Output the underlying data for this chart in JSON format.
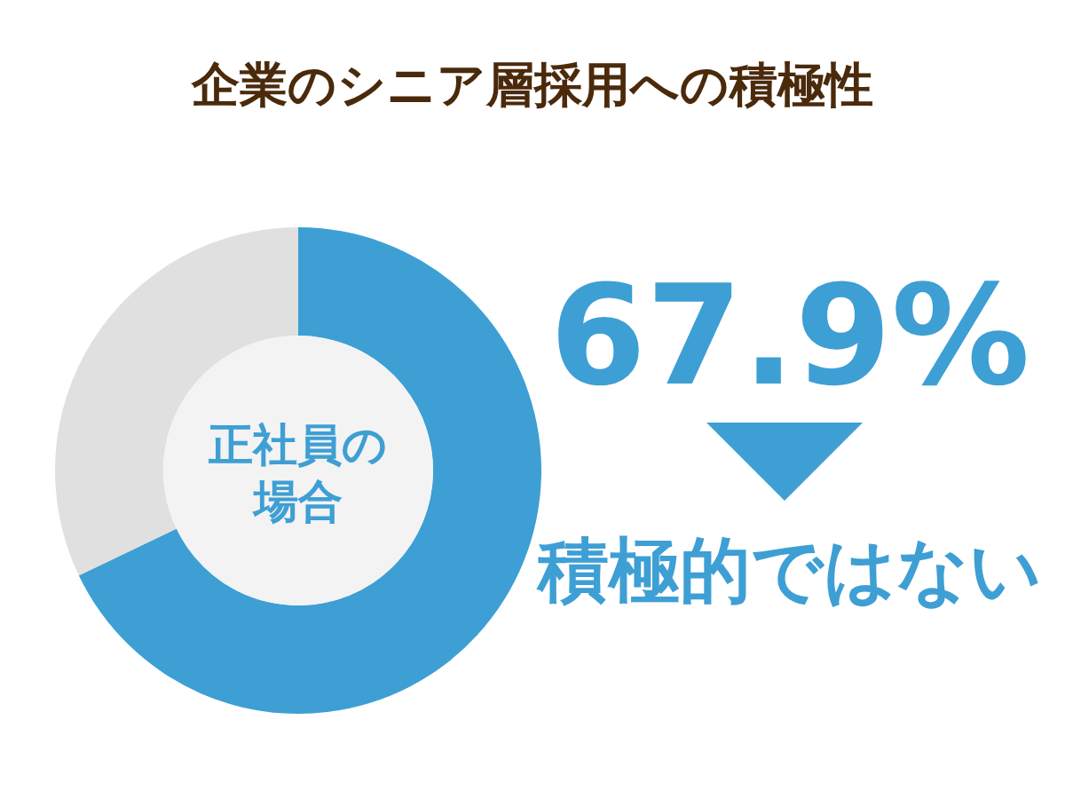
{
  "chart_data": {
    "type": "donut",
    "title": "企業のシニア層採用への積極性",
    "categories": [
      "積極的ではない",
      null
    ],
    "values": [
      67.9,
      32.1
    ],
    "colors": [
      "#3e9fd4",
      "#e0e0e0"
    ],
    "value_labels": [
      "67.9%",
      null
    ],
    "annotations": [
      "正社員の場合"
    ],
    "legend": "right"
  }
}
